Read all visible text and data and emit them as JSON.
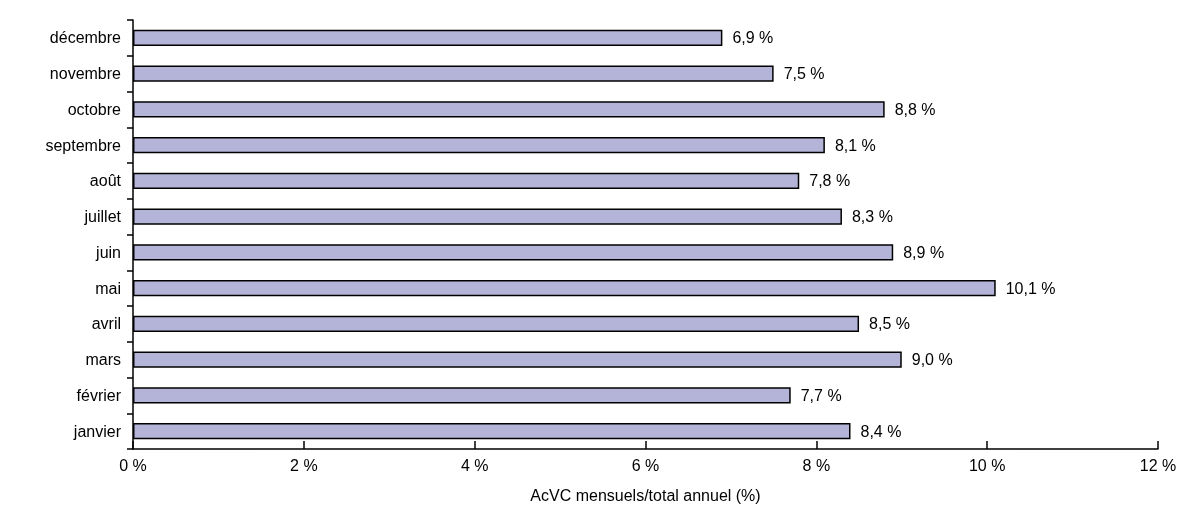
{
  "chart_data": {
    "type": "bar",
    "orientation": "horizontal",
    "xlabel": "AcVC mensuels/total annuel (%)",
    "categories": [
      "décembre",
      "novembre",
      "octobre",
      "septembre",
      "août",
      "juillet",
      "juin",
      "mai",
      "avril",
      "mars",
      "février",
      "janvier"
    ],
    "values": [
      6.9,
      7.5,
      8.8,
      8.1,
      7.8,
      8.3,
      8.9,
      10.1,
      8.5,
      9.0,
      7.7,
      8.4
    ],
    "value_labels": [
      "6,9 %",
      "7,5 %",
      "8,8 %",
      "8,1 %",
      "7,8 %",
      "8,3 %",
      "8,9 %",
      "10,1 %",
      "8,5 %",
      "9,0 %",
      "7,7 %",
      "8,4 %"
    ],
    "color": "#b4b4d8",
    "xlim": [
      0,
      12
    ],
    "xticks": [
      {
        "value": 0,
        "label": "0 %"
      },
      {
        "value": 2,
        "label": "2 %"
      },
      {
        "value": 4,
        "label": "4 %"
      },
      {
        "value": 6,
        "label": "6 %"
      },
      {
        "value": 8,
        "label": "8 %"
      },
      {
        "value": 10,
        "label": "10 %"
      },
      {
        "value": 12,
        "label": "12 %"
      }
    ],
    "grid": false
  }
}
